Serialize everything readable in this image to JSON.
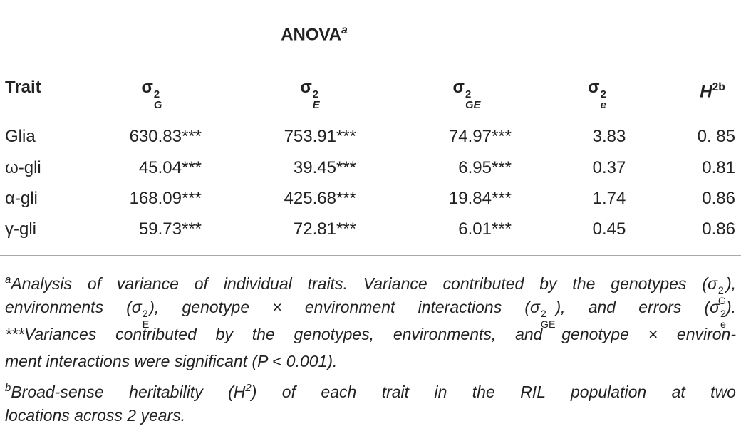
{
  "header": {
    "group": {
      "text": "ANOVA",
      "sup": "a"
    },
    "columns": [
      {
        "text": "Trait"
      },
      {
        "text": "σ",
        "sup": "2",
        "sub": "G"
      },
      {
        "text": "σ",
        "sup": "2",
        "sub": "E"
      },
      {
        "text": "σ",
        "sup": "2",
        "sub": "GE"
      },
      {
        "text": "σ",
        "sup": "2",
        "sub": "e"
      },
      {
        "text": "H",
        "sup": "2b"
      }
    ]
  },
  "table": {
    "rows": [
      [
        "Glia",
        "630.83***",
        "753.91***",
        "74.97***",
        "3.83",
        "0. 85"
      ],
      [
        "ω-gli",
        "45.04***",
        "39.45***",
        "6.95***",
        "0.37",
        "0.81"
      ],
      [
        "α-gli",
        "168.09***",
        "425.68***",
        "19.84***",
        "1.74",
        "0.86"
      ],
      [
        "γ-gli",
        "59.73***",
        "72.81***",
        "6.01***",
        "0.45",
        "0.86"
      ]
    ]
  },
  "footnotes": [
    {
      "lines": [
        [
          {
            "sup": "a"
          },
          {
            "text": "Analysis of variance of individual traits. Variance contributed by the genotypes (σ",
            "sup": "2",
            "sub": "G"
          },
          {
            "text": "),"
          }
        ],
        [
          {
            "text": "environments (σ",
            "sup": "2",
            "sub": "E"
          },
          {
            "text": "), genotype × environment interactions (σ",
            "sup": "2",
            "sub": "GE"
          },
          {
            "text": "), and errors (σ",
            "sup": "2",
            "sub": "e"
          },
          {
            "text": ")."
          }
        ],
        [
          {
            "text": "***Variances contributed by the genotypes, environments, and genotype × environ-"
          }
        ],
        [
          {
            "text": "ment interactions were significant (P < 0.001)."
          }
        ]
      ]
    },
    {
      "lines": [
        [
          {
            "sup": "b"
          },
          {
            "text": "Broad-sense heritability (H",
            "sup": "2"
          },
          {
            "text": ") of each trait in the RIL population at two"
          }
        ],
        [
          {
            "text": "locations across 2 years."
          }
        ]
      ]
    }
  ]
}
